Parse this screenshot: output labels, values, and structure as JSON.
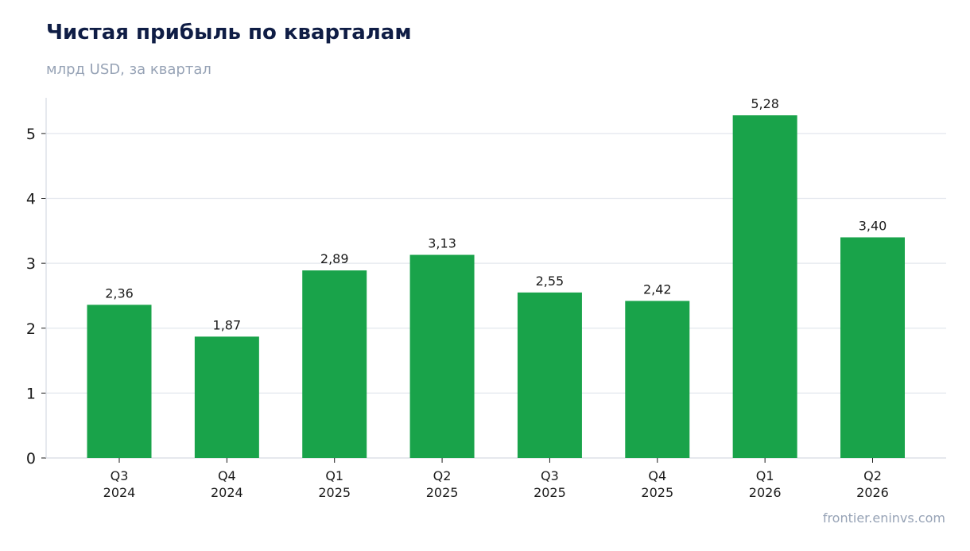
{
  "chart_data": {
    "type": "bar",
    "title": "Чистая прибыль по кварталам",
    "subtitle": "млрд USD, за квартал",
    "categories": [
      [
        "Q3",
        "2024"
      ],
      [
        "Q4",
        "2024"
      ],
      [
        "Q1",
        "2025"
      ],
      [
        "Q2",
        "2025"
      ],
      [
        "Q3",
        "2025"
      ],
      [
        "Q4",
        "2025"
      ],
      [
        "Q1",
        "2026"
      ],
      [
        "Q2",
        "2026"
      ]
    ],
    "values": [
      2.36,
      1.87,
      2.89,
      3.13,
      2.55,
      2.42,
      5.28,
      3.4
    ],
    "data_labels": [
      "2,36",
      "1,87",
      "2,89",
      "3,13",
      "2,55",
      "2,42",
      "5,28",
      "3,40"
    ],
    "yticks": [
      0,
      1,
      2,
      3,
      4,
      5
    ],
    "ylim": [
      0,
      5.55
    ],
    "xlabel": "",
    "ylabel": "",
    "grid": true,
    "colors": {
      "bar": "#19a34a",
      "grid": "#e3e7ee",
      "axis": "#d6dae2"
    }
  },
  "source": "frontier.eninvs.com"
}
